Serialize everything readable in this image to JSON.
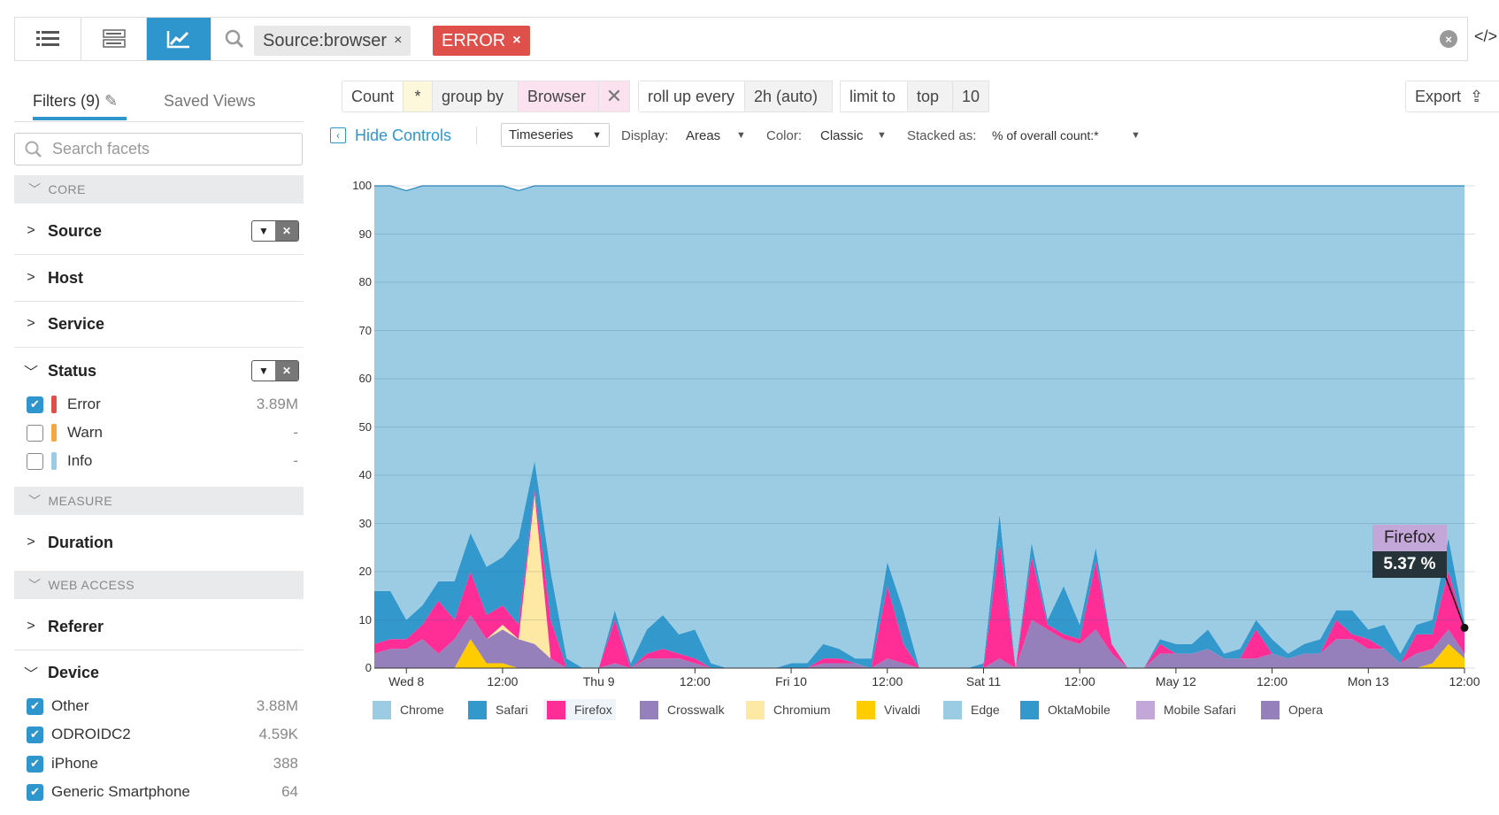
{
  "toolbar": {
    "views": [
      {
        "icon": "list-icon"
      },
      {
        "icon": "patterns-icon"
      },
      {
        "icon": "analytics-chart-icon",
        "active": true
      }
    ],
    "search_chips": [
      {
        "label": "Source:browser",
        "color": "#e8e8e8"
      },
      {
        "label": "ERROR",
        "color": "#e0504a"
      }
    ],
    "chip_remove": "×",
    "code_toggle": "</>"
  },
  "sidebar": {
    "tabs": [
      {
        "label": "Filters (9)",
        "active": true
      },
      {
        "label": "Saved Views"
      }
    ],
    "search_placeholder": "Search facets",
    "sections": {
      "core": "CORE",
      "measure": "MEASURE",
      "web_access": "WEB ACCESS"
    },
    "facets": {
      "source": "Source",
      "host": "Host",
      "service": "Service",
      "status": "Status",
      "duration": "Duration",
      "referer": "Referer",
      "device": "Device"
    },
    "status_options": [
      {
        "label": "Error",
        "count": "3.89M",
        "checked": true,
        "color": "#e0504a"
      },
      {
        "label": "Warn",
        "count": "-",
        "checked": false,
        "color": "#f5a742"
      },
      {
        "label": "Info",
        "count": "-",
        "checked": false,
        "color": "#9ccbe4"
      }
    ],
    "device_options": [
      {
        "label": "Other",
        "count": "3.88M",
        "checked": true
      },
      {
        "label": "ODROIDC2",
        "count": "4.59K",
        "checked": true
      },
      {
        "label": "iPhone",
        "count": "388",
        "checked": true
      },
      {
        "label": "Generic Smartphone",
        "count": "64",
        "checked": true
      }
    ]
  },
  "query": {
    "count": "Count",
    "star": "*",
    "group_by": "group by",
    "group_field": "Browser",
    "rollup": "roll up every",
    "rollup_value": "2h (auto)",
    "limit": "limit to",
    "limit_dir": "top",
    "limit_n": "10",
    "export": "Export"
  },
  "controls": {
    "hide": "Hide Controls",
    "viz": "Timeseries",
    "display_label": "Display:",
    "display": "Areas",
    "color_label": "Color:",
    "color": "Classic",
    "stacked_label": "Stacked as:",
    "stacked": "% of overall count:*"
  },
  "tooltip": {
    "series": "Firefox",
    "value": "5.37 %"
  },
  "chart_data": {
    "type": "area",
    "stacked": "percent",
    "interval": "2h",
    "ylim": [
      0,
      100
    ],
    "yticks": [
      "0",
      "10",
      "20",
      "30",
      "40",
      "50",
      "60",
      "70",
      "80",
      "90",
      "100"
    ],
    "xticks": [
      "Wed 8",
      "12:00",
      "Thu 9",
      "12:00",
      "Fri 10",
      "12:00",
      "Sat 11",
      "12:00",
      "May 12",
      "12:00",
      "Mon 13",
      "12:00"
    ],
    "grid": true,
    "legend": "bottom",
    "series": [
      {
        "name": "Vivaldi",
        "color": "#ffcc00",
        "values": [
          0,
          0,
          0,
          0,
          0,
          0,
          6,
          1,
          1,
          0,
          0,
          0,
          0,
          0,
          0,
          0,
          0,
          0,
          0,
          0,
          0,
          0,
          0,
          0,
          0,
          0,
          0,
          0,
          0,
          0,
          0,
          0,
          0,
          0,
          0,
          0,
          0,
          0,
          0,
          0,
          0,
          0,
          0,
          0,
          0,
          0,
          0,
          0,
          0,
          0,
          0,
          0,
          0,
          0,
          0,
          0,
          0,
          0,
          0,
          0,
          0,
          0,
          0,
          0,
          0,
          0,
          1,
          5,
          2
        ]
      },
      {
        "name": "Crosswalk",
        "color": "#9580bb",
        "values": [
          3,
          4,
          4,
          6,
          3,
          6,
          5,
          5,
          7,
          6,
          5,
          2,
          0,
          0,
          0,
          1,
          0,
          2,
          2,
          2,
          1,
          0,
          0,
          0,
          0,
          0,
          0,
          0,
          1,
          1,
          1,
          0,
          2,
          1,
          0,
          0,
          0,
          0,
          0,
          2,
          0,
          10,
          8,
          6,
          5,
          8,
          3,
          0,
          0,
          3,
          3,
          3,
          4,
          2,
          2,
          2,
          3,
          2,
          3,
          3,
          6,
          6,
          4,
          4,
          1,
          3,
          3,
          3,
          1
        ]
      },
      {
        "name": "Chromium",
        "color": "#fde9a3",
        "values": [
          0,
          0,
          0,
          0,
          0,
          0,
          0,
          0,
          1,
          0,
          31,
          0,
          0,
          0,
          0,
          0,
          0,
          0,
          0,
          0,
          0,
          0,
          0,
          0,
          0,
          0,
          0,
          0,
          0,
          0,
          0,
          0,
          0,
          0,
          0,
          0,
          0,
          0,
          0,
          0,
          0,
          0,
          0,
          0,
          0,
          0,
          0,
          0,
          0,
          0,
          0,
          0,
          0,
          0,
          0,
          0,
          0,
          0,
          0,
          0,
          0,
          0,
          0,
          0,
          0,
          0,
          0,
          0,
          0
        ]
      },
      {
        "name": "Firefox",
        "color": "#ff2d95",
        "values": [
          2,
          2,
          2,
          3,
          11,
          4,
          9,
          5,
          4,
          3,
          1,
          8,
          0,
          0,
          0,
          9,
          0,
          1,
          2,
          1,
          1,
          0,
          0,
          0,
          0,
          0,
          0,
          0,
          1,
          1,
          0,
          0,
          15,
          4,
          0,
          0,
          0,
          0,
          0,
          24,
          0,
          13,
          1,
          1,
          1,
          14,
          2,
          0,
          0,
          2,
          0,
          0,
          0,
          0,
          0,
          6,
          0,
          0,
          0,
          0,
          4,
          1,
          2,
          0,
          0,
          4,
          3,
          12,
          5.37
        ]
      },
      {
        "name": "Safari",
        "color": "#3399cc",
        "values": [
          11,
          10,
          4,
          4,
          4,
          8,
          8,
          10,
          10,
          18,
          6,
          10,
          2,
          0,
          0,
          2,
          1,
          5,
          7,
          4,
          6,
          1,
          0,
          0,
          0,
          0,
          1,
          1,
          3,
          2,
          1,
          2,
          5,
          7,
          0,
          0,
          0,
          0,
          1,
          6,
          0,
          3,
          1,
          10,
          3,
          3,
          0,
          0,
          0,
          1,
          2,
          2,
          4,
          1,
          2,
          2,
          3,
          1,
          2,
          3,
          2,
          5,
          2,
          5,
          2,
          2,
          3,
          7,
          1
        ]
      },
      {
        "name": "Chrome",
        "color": "#9ccbe4",
        "values": [
          84,
          84,
          89,
          87,
          82,
          82,
          72,
          79,
          77,
          72,
          57,
          80,
          98,
          100,
          100,
          88,
          99,
          92,
          89,
          93,
          92,
          99,
          100,
          100,
          100,
          100,
          99,
          99,
          95,
          96,
          98,
          98,
          78,
          88,
          100,
          100,
          100,
          100,
          99,
          68,
          100,
          74,
          90,
          83,
          91,
          75,
          95,
          100,
          100,
          94,
          95,
          95,
          92,
          97,
          96,
          90,
          94,
          97,
          95,
          94,
          88,
          88,
          92,
          91,
          97,
          91,
          90,
          73,
          90.63
        ]
      }
    ],
    "legend_entries": [
      {
        "name": "Chrome",
        "color": "#9ccbe4"
      },
      {
        "name": "Safari",
        "color": "#3399cc"
      },
      {
        "name": "Firefox",
        "color": "#ff2d95",
        "highlighted": true
      },
      {
        "name": "Crosswalk",
        "color": "#9580bb"
      },
      {
        "name": "Chromium",
        "color": "#fde9a3"
      },
      {
        "name": "Vivaldi",
        "color": "#ffcc00"
      },
      {
        "name": "Edge",
        "color": "#9ccbe4"
      },
      {
        "name": "OktaMobile",
        "color": "#3399cc"
      },
      {
        "name": "Mobile Safari",
        "color": "#c3a7d9"
      },
      {
        "name": "Opera",
        "color": "#9580bb"
      }
    ]
  }
}
